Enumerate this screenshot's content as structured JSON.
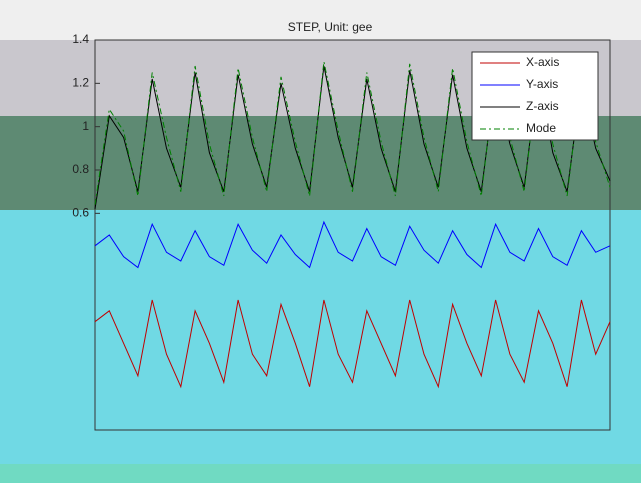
{
  "chart_data": {
    "type": "line",
    "title": "STEP, Unit: gee",
    "series": [
      {
        "name": "X-axis",
        "color": "#c00000",
        "dash": "none",
        "values": [
          0.1,
          0.15,
          0.0,
          -0.15,
          0.2,
          -0.05,
          -0.2,
          0.15,
          0.0,
          -0.18,
          0.2,
          -0.05,
          -0.15,
          0.18,
          0.0,
          -0.2,
          0.2,
          -0.05,
          -0.18,
          0.15,
          0.0,
          -0.15,
          0.2,
          -0.05,
          -0.2,
          0.18,
          0.0,
          -0.15,
          0.2,
          -0.05,
          -0.18,
          0.15,
          0.0,
          -0.2,
          0.2,
          -0.05,
          0.1
        ]
      },
      {
        "name": "Y-axis",
        "color": "#0000ff",
        "dash": "none",
        "values": [
          0.45,
          0.5,
          0.4,
          0.35,
          0.55,
          0.42,
          0.38,
          0.52,
          0.4,
          0.36,
          0.55,
          0.43,
          0.37,
          0.5,
          0.41,
          0.35,
          0.56,
          0.42,
          0.38,
          0.53,
          0.4,
          0.36,
          0.54,
          0.43,
          0.37,
          0.52,
          0.41,
          0.35,
          0.55,
          0.42,
          0.38,
          0.53,
          0.4,
          0.36,
          0.52,
          0.42,
          0.45
        ]
      },
      {
        "name": "Z-axis",
        "color": "#000000",
        "dash": "none",
        "values": [
          0.62,
          1.05,
          0.95,
          0.7,
          1.22,
          0.9,
          0.72,
          1.25,
          0.88,
          0.7,
          1.24,
          0.92,
          0.72,
          1.2,
          0.9,
          0.7,
          1.28,
          0.95,
          0.72,
          1.22,
          0.9,
          0.7,
          1.26,
          0.92,
          0.72,
          1.24,
          0.9,
          0.7,
          1.22,
          0.92,
          0.72,
          1.25,
          0.88,
          0.7,
          1.2,
          0.9,
          0.75
        ]
      },
      {
        "name": "Mode",
        "color": "#008000",
        "dash": "6 3 2 3",
        "values": [
          0.64,
          1.08,
          0.98,
          0.68,
          1.25,
          0.95,
          0.7,
          1.28,
          0.92,
          0.68,
          1.27,
          0.95,
          0.7,
          1.23,
          0.93,
          0.68,
          1.3,
          0.98,
          0.7,
          1.25,
          0.93,
          0.68,
          1.29,
          0.95,
          0.7,
          1.27,
          0.93,
          0.68,
          1.25,
          0.95,
          0.7,
          1.28,
          0.92,
          0.68,
          1.23,
          0.93,
          0.72
        ]
      }
    ],
    "ylim": [
      -0.4,
      1.4
    ],
    "yticks": [
      0.6,
      0.8,
      1,
      1.2,
      1.4
    ],
    "legend": "upper-right"
  }
}
